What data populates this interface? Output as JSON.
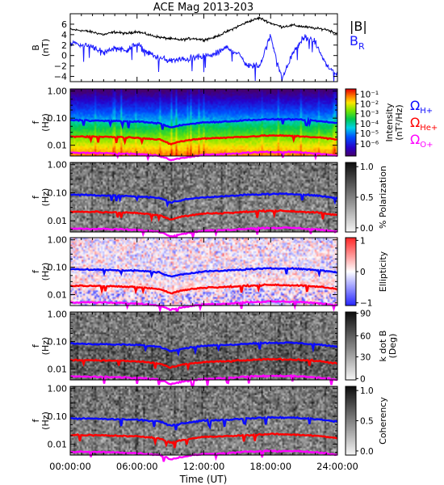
{
  "figure": {
    "title": "ACE Mag 2013-203",
    "xlabel": "Time (UT)",
    "x_ticks": [
      "00:00:00",
      "06:00:00",
      "12:00:00",
      "18:00:00",
      "24:00:00"
    ]
  },
  "colors": {
    "B_total": "#000000",
    "B_R": "#1a1aff",
    "H_plus": "#0a0aff",
    "He_plus": "#ff0000",
    "O_plus": "#ff00ff",
    "frame": "#000000"
  },
  "legend": {
    "B_total": "|B|",
    "B_R_main": "B",
    "B_R_sub": "R",
    "H_main": "Ω",
    "H_sub": "H+",
    "He_main": "Ω",
    "He_sub": "He+",
    "O_main": "Ω",
    "O_sub": "O+"
  },
  "chart_data": [
    {
      "type": "line",
      "panel": "magnetic-field",
      "ylabel_line1": "B",
      "ylabel_line2": "(nT)",
      "ylim": [
        -5,
        8
      ],
      "y_ticks": [
        "6",
        "4",
        "2",
        "0",
        "−2",
        "−4"
      ],
      "x_hours": [
        0,
        1,
        2,
        3,
        4,
        5,
        6,
        7,
        8,
        9,
        10,
        11,
        12,
        13,
        14,
        15,
        16,
        17,
        18,
        19,
        20,
        21,
        22,
        23,
        24
      ],
      "series": [
        {
          "name": "|B|",
          "values": [
            5.0,
            4.8,
            4.5,
            4.0,
            4.5,
            4.2,
            4.6,
            4.0,
            3.5,
            3.2,
            3.0,
            3.3,
            3.0,
            3.5,
            4.5,
            5.5,
            6.5,
            7.2,
            6.2,
            5.5,
            5.8,
            5.5,
            5.2,
            5.0,
            4.2
          ]
        },
        {
          "name": "B_R",
          "values": [
            2.5,
            2.0,
            1.8,
            0.5,
            1.5,
            1.0,
            2.2,
            0.5,
            -0.5,
            -1.0,
            -0.8,
            -0.5,
            -0.2,
            0.2,
            1.5,
            0.5,
            -2.0,
            -2.0,
            3.8,
            -4.5,
            0.5,
            3.5,
            2.5,
            -1.8,
            -3.8
          ]
        }
      ]
    },
    {
      "type": "heatmap",
      "panel": "intensity",
      "ylabel_line1": "f",
      "ylabel_line2": "(Hz)",
      "y_ticks": [
        "1.00",
        "0.10",
        "0.01"
      ],
      "colorbar_label_line1": "Intensity",
      "colorbar_label_line2": "(nT²/Hz)",
      "colorbar_ticks": [
        "10⁻¹",
        "10⁻²",
        "10⁻³",
        "10⁻⁴",
        "10⁻⁵",
        "10⁻⁶"
      ],
      "x_hours": [
        0,
        2,
        4,
        6,
        8,
        9,
        10,
        12,
        14,
        16,
        18,
        20,
        22,
        24
      ],
      "series": [
        {
          "name": "Ω H+",
          "values": [
            0.085,
            0.082,
            0.078,
            0.075,
            0.065,
            0.045,
            0.055,
            0.07,
            0.075,
            0.085,
            0.09,
            0.09,
            0.08,
            0.065
          ]
        },
        {
          "name": "Ω He+",
          "values": [
            0.021,
            0.021,
            0.02,
            0.019,
            0.016,
            0.011,
            0.014,
            0.018,
            0.019,
            0.021,
            0.023,
            0.022,
            0.02,
            0.016
          ]
        },
        {
          "name": "Ω O+",
          "values": [
            0.0053,
            0.0052,
            0.005,
            0.0047,
            0.0041,
            0.0028,
            0.0034,
            0.0044,
            0.0047,
            0.0053,
            0.0056,
            0.0056,
            0.005,
            0.0041
          ]
        }
      ]
    },
    {
      "type": "heatmap",
      "panel": "polarization",
      "ylabel_line1": "f",
      "ylabel_line2": "(Hz)",
      "y_ticks": [
        "1.00",
        "0.10",
        "0.01"
      ],
      "colorbar_label_line1": "% Polarization",
      "colorbar_ticks": [
        "1.0",
        "0.5",
        "0.0"
      ]
    },
    {
      "type": "heatmap",
      "panel": "ellipticity",
      "ylabel_line1": "f",
      "ylabel_line2": "(Hz)",
      "y_ticks": [
        "1.00",
        "0.10",
        "0.01"
      ],
      "colorbar_label_line1": "Ellipticity",
      "colorbar_ticks": [
        "1",
        "0",
        "−1"
      ]
    },
    {
      "type": "heatmap",
      "panel": "wave-normal",
      "ylabel_line1": "f",
      "ylabel_line2": "(Hz)",
      "y_ticks": [
        "1.00",
        "0.10",
        "0.01"
      ],
      "colorbar_label_line1": "k dot B",
      "colorbar_label_line2": "(Deg)",
      "colorbar_ticks": [
        "90",
        "60",
        "30",
        "0"
      ]
    },
    {
      "type": "heatmap",
      "panel": "coherency",
      "ylabel_line1": "f",
      "ylabel_line2": "(Hz)",
      "y_ticks": [
        "1.00",
        "0.10",
        "0.01"
      ],
      "colorbar_label_line1": "Coherency",
      "colorbar_ticks": [
        "1.0",
        "0.5",
        "0.0"
      ]
    }
  ]
}
